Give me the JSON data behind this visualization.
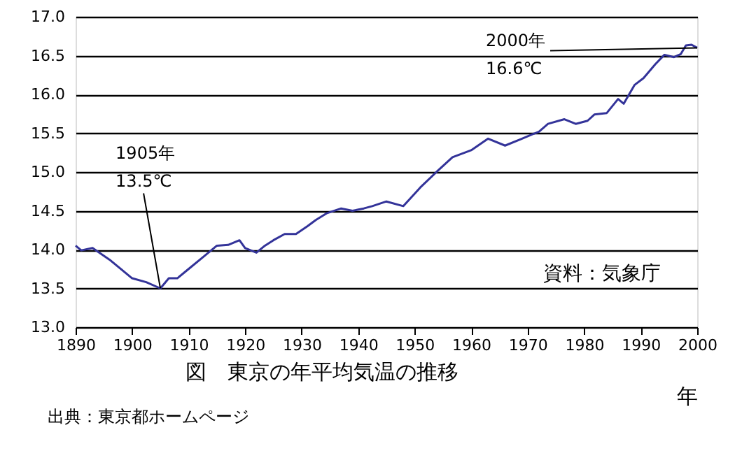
{
  "chart_data": {
    "type": "line",
    "title": "図　東京の年平均気温の推移",
    "xlabel": "年",
    "x": [
      1890,
      1891,
      1893,
      1896,
      1897.5,
      1900,
      1902.5,
      1905,
      1906.5,
      1908,
      1910,
      1912.5,
      1915,
      1917,
      1919,
      1920,
      1922,
      1923.5,
      1925,
      1927,
      1929,
      1931,
      1932.5,
      1934.5,
      1937,
      1939,
      1941,
      1942.5,
      1945,
      1948,
      1951,
      1954,
      1956.7,
      1960,
      1963,
      1966,
      1969,
      1972,
      1973.6,
      1976.5,
      1978.5,
      1980.6,
      1981.8,
      1984,
      1986,
      1987,
      1988.9,
      1990.5,
      1992.6,
      1994.2,
      1995.9,
      1997.1,
      1998,
      1999,
      2000
    ],
    "series": [
      {
        "color": "#333399",
        "values": [
          14.05,
          13.99,
          14.02,
          13.87,
          13.78,
          13.63,
          13.58,
          13.5,
          13.63,
          13.63,
          13.75,
          13.9,
          14.05,
          14.06,
          14.12,
          14.02,
          13.96,
          14.05,
          14.12,
          14.2,
          14.2,
          14.3,
          14.38,
          14.47,
          14.53,
          14.5,
          14.53,
          14.56,
          14.62,
          14.56,
          14.8,
          15.01,
          15.19,
          15.28,
          15.43,
          15.34,
          15.43,
          15.52,
          15.62,
          15.68,
          15.62,
          15.66,
          15.74,
          15.76,
          15.94,
          15.88,
          16.12,
          16.21,
          16.39,
          16.51,
          16.48,
          16.52,
          16.63,
          16.64,
          16.6
        ]
      }
    ],
    "xlim": [
      1890,
      2000
    ],
    "xticks": [
      1890,
      1900,
      1910,
      1920,
      1930,
      1940,
      1950,
      1960,
      1970,
      1980,
      1990,
      2000
    ],
    "ylim": [
      13,
      17
    ],
    "yticks": [
      {
        "value": 13,
        "label": "13.0"
      },
      {
        "value": 13.5,
        "label": "13.5"
      },
      {
        "value": 14,
        "label": "14.0"
      },
      {
        "value": 14.5,
        "label": "14.5"
      },
      {
        "value": 15,
        "label": "15.0"
      },
      {
        "value": 15.5,
        "label": "15.5"
      },
      {
        "value": 16,
        "label": "16.0"
      },
      {
        "value": 16.5,
        "label": "16.5"
      },
      {
        "value": 17,
        "label": "17.0"
      }
    ],
    "grid": "y",
    "marker": "none",
    "line_style": "solid",
    "annotations": [
      {
        "text": "1905年 13.5℃",
        "x": 1905,
        "y": 13.5
      },
      {
        "text": "2000年 16.6℃",
        "x": 2000,
        "y": 16.6
      },
      "資料：気象庁",
      "出典：東京都ホームページ"
    ]
  }
}
